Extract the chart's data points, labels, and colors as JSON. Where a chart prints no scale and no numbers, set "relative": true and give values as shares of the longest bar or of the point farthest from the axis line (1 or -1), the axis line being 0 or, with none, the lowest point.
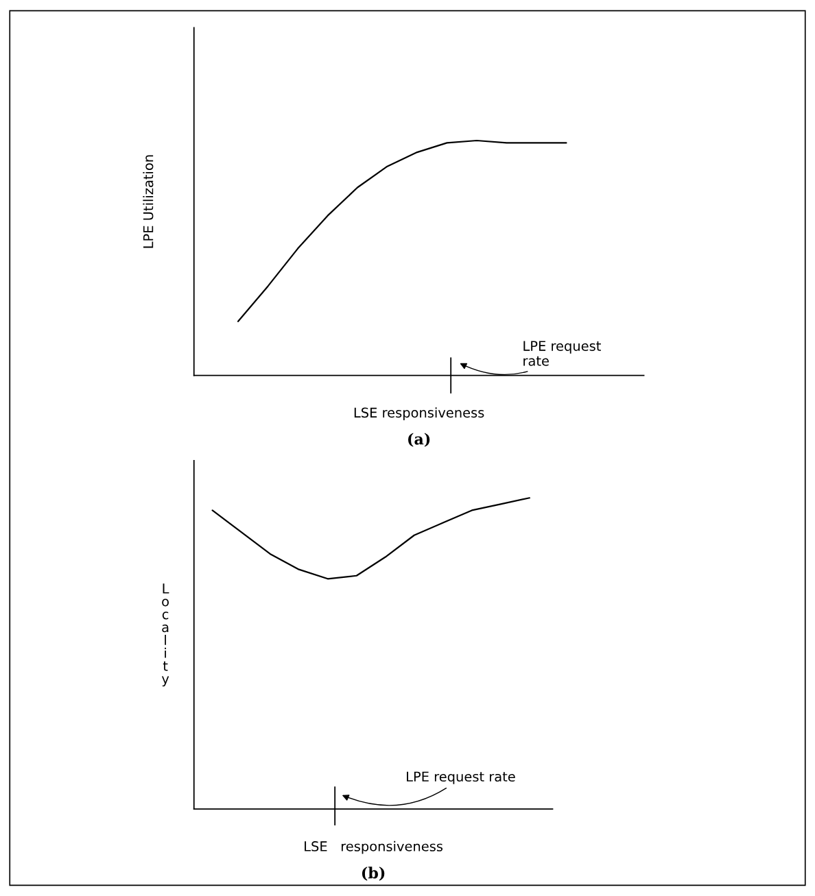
{
  "chart_data": [
    {
      "type": "line",
      "title": "(a)",
      "xlabel": "LSE responsiveness",
      "ylabel": "LPE Utilization",
      "relative": true,
      "grid": false,
      "categories": [
        null,
        null,
        null,
        null,
        null,
        null,
        null,
        null,
        null,
        null,
        null,
        null,
        null,
        null,
        null
      ],
      "series": [
        {
          "color": "#000000",
          "values": [
            null,
            0.23,
            0.38,
            0.54,
            0.68,
            0.8,
            0.89,
            0.95,
            0.99,
            1.0,
            0.99,
            0.99,
            0.99,
            null,
            null
          ]
        }
      ],
      "annotations": [
        "LPE request\nrate"
      ]
    },
    {
      "type": "line",
      "title": "(b)",
      "xlabel": "LSE   responsiveness",
      "ylabel": "Locality",
      "relative": true,
      "grid": false,
      "categories": [
        null,
        null,
        null,
        null,
        null,
        null,
        null,
        null,
        null,
        null,
        null,
        null
      ],
      "series": [
        {
          "color": "#000000",
          "values": [
            0.96,
            0.89,
            0.82,
            0.77,
            0.74,
            0.75,
            0.81,
            0.88,
            0.92,
            0.96,
            0.98,
            1.0
          ]
        }
      ],
      "annotations": [
        "LPE request rate"
      ]
    }
  ]
}
